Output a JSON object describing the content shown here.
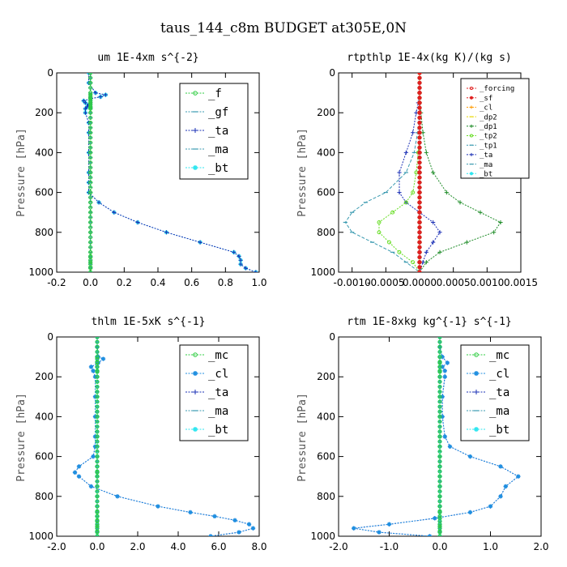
{
  "title": "taus_144_c8m  BUDGET at305E,0N",
  "colors": {
    "green": "#2ecc40",
    "blue_dark": "#1a2fb5",
    "blue": "#1f8fe0",
    "cyan": "#2fe6f0",
    "red": "#e02020",
    "orange": "#ff9a00",
    "yellow": "#e8d800",
    "darkgreen": "#1e8c28",
    "lime": "#66dd22",
    "teal": "#3a9ab0"
  },
  "chart_data": [
    {
      "type": "line",
      "title": "um  1E-4xm s^{-2}",
      "ylabel": "Pressure [hPa]",
      "xlim": [
        -0.2,
        1.0
      ],
      "ylim": [
        1000,
        0
      ],
      "xticks": [
        "-0.2",
        "0.0",
        "0.2",
        "0.4",
        "0.6",
        "0.8",
        "1.0"
      ],
      "xtick_values": [
        -0.2,
        0.0,
        0.2,
        0.4,
        0.6,
        0.8,
        1.0
      ],
      "yticks": [
        "0",
        "200",
        "400",
        "600",
        "800",
        "1000"
      ],
      "ytick_values": [
        0,
        200,
        400,
        600,
        800,
        1000
      ],
      "legend_position": "top-right",
      "y": [
        0,
        50,
        100,
        110,
        120,
        130,
        140,
        150,
        160,
        170,
        180,
        200,
        250,
        300,
        400,
        500,
        550,
        600,
        650,
        700,
        750,
        800,
        850,
        900,
        920,
        940,
        960,
        980,
        1000
      ],
      "series": [
        {
          "name": "_f",
          "color": "green",
          "marker": "o",
          "x": [
            0,
            0,
            0,
            0,
            0,
            0,
            0,
            0,
            0,
            0,
            0,
            0,
            0,
            0,
            0,
            0,
            0,
            0,
            0,
            0,
            0,
            0,
            0,
            0,
            0,
            0,
            0,
            0,
            0
          ]
        },
        {
          "name": "_gf",
          "color": "teal",
          "marker": "-",
          "x": [
            0,
            0,
            0,
            0,
            0,
            0,
            0,
            0,
            0,
            0,
            0,
            0,
            0,
            0,
            0,
            0,
            0,
            0,
            0,
            0,
            0,
            0,
            0,
            0,
            0,
            0,
            0,
            0,
            0
          ]
        },
        {
          "name": "_ta",
          "color": "blue_dark",
          "marker": "+",
          "x": [
            -0.01,
            -0.01,
            0.03,
            0.09,
            0.06,
            0.0,
            -0.04,
            -0.03,
            -0.01,
            -0.02,
            -0.03,
            -0.03,
            -0.01,
            -0.01,
            -0.01,
            -0.01,
            -0.01,
            -0.01,
            0.05,
            0.14,
            0.28,
            0.45,
            0.65,
            0.85,
            0.88,
            0.89,
            0.89,
            0.92,
            0.98
          ]
        },
        {
          "name": "_ma",
          "color": "teal",
          "marker": "-",
          "x": [
            0,
            0,
            0,
            0,
            0,
            0,
            0,
            0,
            0,
            0,
            0,
            0,
            0,
            0,
            0,
            0,
            0,
            0,
            0,
            0,
            0,
            0,
            0,
            0,
            0,
            0,
            0,
            0,
            0
          ]
        },
        {
          "name": "_bt",
          "color": "cyan",
          "marker": "*",
          "x": [
            -0.01,
            -0.01,
            0.03,
            0.09,
            0.06,
            0.0,
            -0.04,
            -0.03,
            -0.01,
            -0.02,
            -0.03,
            -0.03,
            -0.01,
            -0.01,
            -0.01,
            -0.01,
            -0.01,
            -0.01,
            0.05,
            0.14,
            0.28,
            0.45,
            0.65,
            0.85,
            0.88,
            0.89,
            0.89,
            0.92,
            0.98
          ]
        }
      ]
    },
    {
      "type": "line",
      "title": "rtpthlp  1E-4x(kg K)/(kg s)",
      "ylabel": "Pressure [hPa]",
      "xlim": [
        -0.0012,
        0.0015
      ],
      "ylim": [
        1000,
        0
      ],
      "xticks": [
        "-0.0010",
        "-0.0005",
        "0.0000",
        "0.0005",
        "0.0010",
        "0.0015"
      ],
      "xtick_values": [
        -0.001,
        -0.0005,
        0.0,
        0.0005,
        0.001,
        0.0015
      ],
      "yticks": [
        "0",
        "200",
        "400",
        "600",
        "800",
        "1000"
      ],
      "ytick_values": [
        0,
        200,
        400,
        600,
        800,
        1000
      ],
      "legend_position": "top-right",
      "y": [
        0,
        100,
        150,
        200,
        300,
        400,
        500,
        600,
        650,
        700,
        750,
        800,
        850,
        900,
        950,
        1000
      ],
      "series": [
        {
          "name": "_forcing",
          "color": "red",
          "marker": "o",
          "x": [
            0,
            0,
            0,
            0,
            0,
            0,
            0,
            0,
            0,
            0,
            0,
            0,
            0,
            0,
            0,
            0
          ]
        },
        {
          "name": "_sf",
          "color": "red",
          "marker": "*",
          "x": [
            0,
            0,
            0,
            0,
            0,
            0,
            0,
            0,
            0,
            0,
            0,
            0,
            0,
            0,
            0,
            0
          ]
        },
        {
          "name": "_cl",
          "color": "orange",
          "marker": "+",
          "x": [
            0,
            0,
            0,
            0,
            0,
            0,
            0,
            0,
            0,
            0,
            0,
            0,
            0,
            0,
            0,
            0
          ]
        },
        {
          "name": "_dp2",
          "color": "yellow",
          "marker": "-",
          "x": [
            0,
            0,
            0,
            0,
            0,
            0,
            0,
            0,
            0,
            0,
            0,
            0,
            0,
            0,
            0,
            0
          ]
        },
        {
          "name": "_dp1",
          "color": "darkgreen",
          "marker": "+",
          "x": [
            0.0,
            0.0,
            0.0,
            2e-05,
            5e-05,
            0.0001,
            0.0002,
            0.0004,
            0.0006,
            0.0009,
            0.0012,
            0.0011,
            0.0007,
            0.0003,
            0.0001,
            0.0
          ]
        },
        {
          "name": "_tp2",
          "color": "lime",
          "marker": "o",
          "x": [
            0.0,
            0.0,
            0.0,
            0.0,
            0.0,
            -2e-05,
            -5e-05,
            -0.0001,
            -0.0002,
            -0.0004,
            -0.0006,
            -0.0006,
            -0.00045,
            -0.0003,
            -0.0001,
            0.0
          ]
        },
        {
          "name": "_tp1",
          "color": "teal",
          "marker": "-",
          "x": [
            0.0,
            0.0,
            0.0,
            0.0,
            -3e-05,
            -8e-05,
            -0.0002,
            -0.0005,
            -0.0008,
            -0.001,
            -0.0011,
            -0.001,
            -0.0007,
            -0.0004,
            -0.0002,
            0.0
          ]
        },
        {
          "name": "_ta",
          "color": "blue_dark",
          "marker": "+",
          "x": [
            0.0,
            0.0,
            -2e-05,
            -5e-05,
            -0.0001,
            -0.0002,
            -0.0003,
            -0.0003,
            -0.0002,
            0.0,
            0.0002,
            0.0003,
            0.0002,
            0.0001,
            5e-05,
            0.0
          ]
        },
        {
          "name": "_ma",
          "color": "teal",
          "marker": "-",
          "x": [
            0,
            0,
            0,
            0,
            0,
            0,
            0,
            0,
            0,
            0,
            0,
            0,
            0,
            0,
            0,
            0
          ]
        },
        {
          "name": "_bt",
          "color": "cyan",
          "marker": "*",
          "x": [
            0,
            0,
            0,
            0,
            0,
            0,
            0,
            0,
            0,
            0,
            0,
            0,
            0,
            0,
            0,
            0
          ]
        }
      ]
    },
    {
      "type": "line",
      "title": "thlm  1E-5xK s^{-1}",
      "ylabel": "Pressure [hPa]",
      "xlim": [
        -2.0,
        8.0
      ],
      "ylim": [
        1000,
        0
      ],
      "xticks": [
        "-2.0",
        "0.0",
        "2.0",
        "4.0",
        "6.0",
        "8.0"
      ],
      "xtick_values": [
        -2.0,
        0.0,
        2.0,
        4.0,
        6.0,
        8.0
      ],
      "yticks": [
        "0",
        "200",
        "400",
        "600",
        "800",
        "1000"
      ],
      "ytick_values": [
        0,
        200,
        400,
        600,
        800,
        1000
      ],
      "legend_position": "top-right",
      "y": [
        0,
        50,
        100,
        110,
        130,
        150,
        170,
        200,
        300,
        400,
        500,
        550,
        600,
        650,
        680,
        700,
        750,
        800,
        850,
        880,
        900,
        920,
        940,
        960,
        980,
        1000
      ],
      "series": [
        {
          "name": "_mc",
          "color": "green",
          "marker": "o",
          "x": [
            0,
            0,
            0,
            0,
            0,
            0,
            0,
            0,
            0,
            0,
            0,
            0,
            0,
            0,
            0,
            0,
            0,
            0,
            0,
            0,
            0,
            0,
            0,
            0,
            0,
            0
          ]
        },
        {
          "name": "_cl",
          "color": "blue",
          "marker": "*",
          "x": [
            0.0,
            0.0,
            0.05,
            0.3,
            0.05,
            -0.3,
            -0.2,
            -0.1,
            -0.1,
            -0.1,
            -0.1,
            -0.1,
            -0.2,
            -0.9,
            -1.1,
            -0.9,
            -0.3,
            1.0,
            3.0,
            4.6,
            5.8,
            6.8,
            7.5,
            7.7,
            7.0,
            5.6
          ]
        },
        {
          "name": "_ta",
          "color": "blue_dark",
          "marker": "+",
          "x": [
            0.0,
            0.0,
            0.05,
            0.3,
            0.05,
            -0.3,
            -0.2,
            -0.1,
            -0.1,
            -0.1,
            -0.1,
            -0.1,
            -0.2,
            -0.9,
            -1.1,
            -0.9,
            -0.3,
            1.0,
            3.0,
            4.6,
            5.8,
            6.8,
            7.5,
            7.7,
            7.0,
            5.6
          ]
        },
        {
          "name": "_ma",
          "color": "teal",
          "marker": "-",
          "x": [
            0,
            0,
            0,
            0,
            0,
            0,
            0,
            0,
            0,
            0,
            0,
            0,
            0,
            0,
            0,
            0,
            0,
            0,
            0,
            0,
            0,
            0,
            0,
            0,
            0,
            0
          ]
        },
        {
          "name": "_bt",
          "color": "cyan",
          "marker": "*",
          "x": [
            0,
            0,
            0,
            0,
            0,
            0,
            0,
            0,
            0,
            0,
            0,
            0,
            0,
            0,
            0,
            0,
            0,
            0,
            0,
            0,
            0,
            0,
            0,
            0,
            0,
            0
          ]
        }
      ]
    },
    {
      "type": "line",
      "title": "rtm  1E-8xkg kg^{-1} s^{-1}",
      "ylabel": "Pressure [hPa]",
      "xlim": [
        -2.0,
        2.0
      ],
      "ylim": [
        1000,
        0
      ],
      "xticks": [
        "-2.0",
        "-1.0",
        "0.0",
        "1.0",
        "2.0"
      ],
      "xtick_values": [
        -2.0,
        -1.0,
        0.0,
        1.0,
        2.0
      ],
      "yticks": [
        "0",
        "200",
        "400",
        "600",
        "800",
        "1000"
      ],
      "ytick_values": [
        0,
        200,
        400,
        600,
        800,
        1000
      ],
      "legend_position": "top-right",
      "y": [
        0,
        50,
        100,
        130,
        150,
        170,
        200,
        300,
        400,
        500,
        550,
        600,
        650,
        700,
        750,
        800,
        850,
        880,
        910,
        940,
        960,
        980,
        1000
      ],
      "series": [
        {
          "name": "_mc",
          "color": "green",
          "marker": "o",
          "x": [
            0,
            0,
            0,
            0,
            0,
            0,
            0,
            0,
            0,
            0,
            0,
            0,
            0,
            0,
            0,
            0,
            0,
            0,
            0,
            0,
            0,
            0,
            0
          ]
        },
        {
          "name": "_cl",
          "color": "blue",
          "marker": "*",
          "x": [
            0.0,
            0.0,
            0.05,
            0.15,
            0.05,
            0.1,
            0.1,
            0.05,
            0.05,
            0.1,
            0.2,
            0.6,
            1.2,
            1.55,
            1.3,
            1.2,
            1.0,
            0.6,
            -0.1,
            -1.0,
            -1.7,
            -1.2,
            -0.2
          ]
        },
        {
          "name": "_ta",
          "color": "blue_dark",
          "marker": "+",
          "x": [
            0.0,
            0.0,
            0.05,
            0.15,
            0.05,
            0.1,
            0.1,
            0.05,
            0.05,
            0.1,
            0.2,
            0.6,
            1.2,
            1.55,
            1.3,
            1.2,
            1.0,
            0.6,
            -0.1,
            -1.0,
            -1.7,
            -1.2,
            -0.2
          ]
        },
        {
          "name": "_ma",
          "color": "teal",
          "marker": "-",
          "x": [
            0,
            0,
            0,
            0,
            0,
            0,
            0,
            0,
            0,
            0,
            0,
            0,
            0,
            0,
            0,
            0,
            0,
            0,
            0,
            0,
            0,
            0,
            0
          ]
        },
        {
          "name": "_bt",
          "color": "cyan",
          "marker": "*",
          "x": [
            0,
            0,
            0,
            0,
            0,
            0,
            0,
            0,
            0,
            0,
            0,
            0,
            0,
            0,
            0,
            0,
            0,
            0,
            0,
            0,
            0,
            0,
            0
          ]
        }
      ]
    }
  ]
}
